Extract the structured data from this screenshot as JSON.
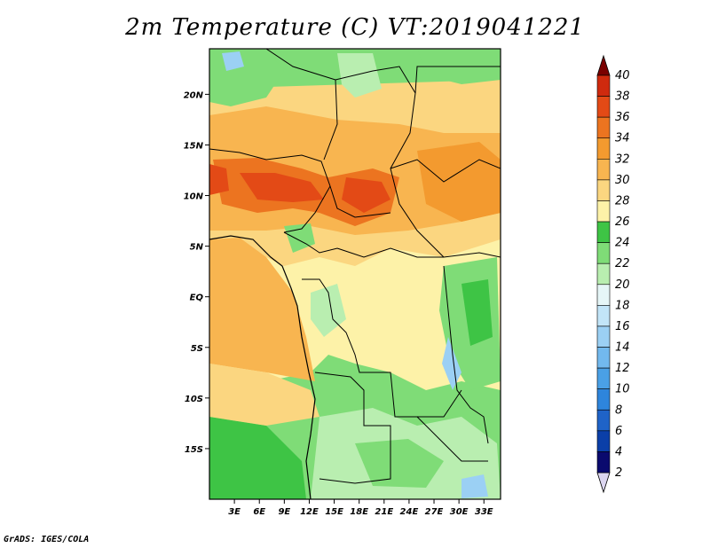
{
  "title": "2m Temperature (C) VT:2019041221",
  "credit": "GrADS: IGES/COLA",
  "map": {
    "lon_range": [
      0,
      35
    ],
    "lat_range": [
      -20,
      24.5
    ],
    "lat_ticks": [
      "20N",
      "15N",
      "10N",
      "5N",
      "EQ",
      "5S",
      "10S",
      "15S"
    ],
    "lon_ticks": [
      "3E",
      "6E",
      "9E",
      "12E",
      "15E",
      "18E",
      "21E",
      "24E",
      "27E",
      "30E",
      "33E"
    ]
  },
  "colorbar": {
    "labels": [
      "2",
      "4",
      "6",
      "8",
      "10",
      "12",
      "14",
      "16",
      "18",
      "20",
      "22",
      "24",
      "26",
      "28",
      "30",
      "32",
      "34",
      "36",
      "38",
      "40"
    ],
    "colors": [
      "#0a0a6e",
      "#0b3fa8",
      "#1f63c8",
      "#2e85dc",
      "#4aa0e6",
      "#72b9ee",
      "#9bd0f4",
      "#c2e5f8",
      "#e6f6f7",
      "#b9eeb0",
      "#7fdc77",
      "#3ec445",
      "#fdf2a8",
      "#fbd680",
      "#f8b550",
      "#f39a2f",
      "#ec7420",
      "#e34a16",
      "#cf2a0e",
      "#a61006",
      "#7a0000"
    ],
    "under_color": "#dcd6f0",
    "over_color": "#7a0000"
  }
}
